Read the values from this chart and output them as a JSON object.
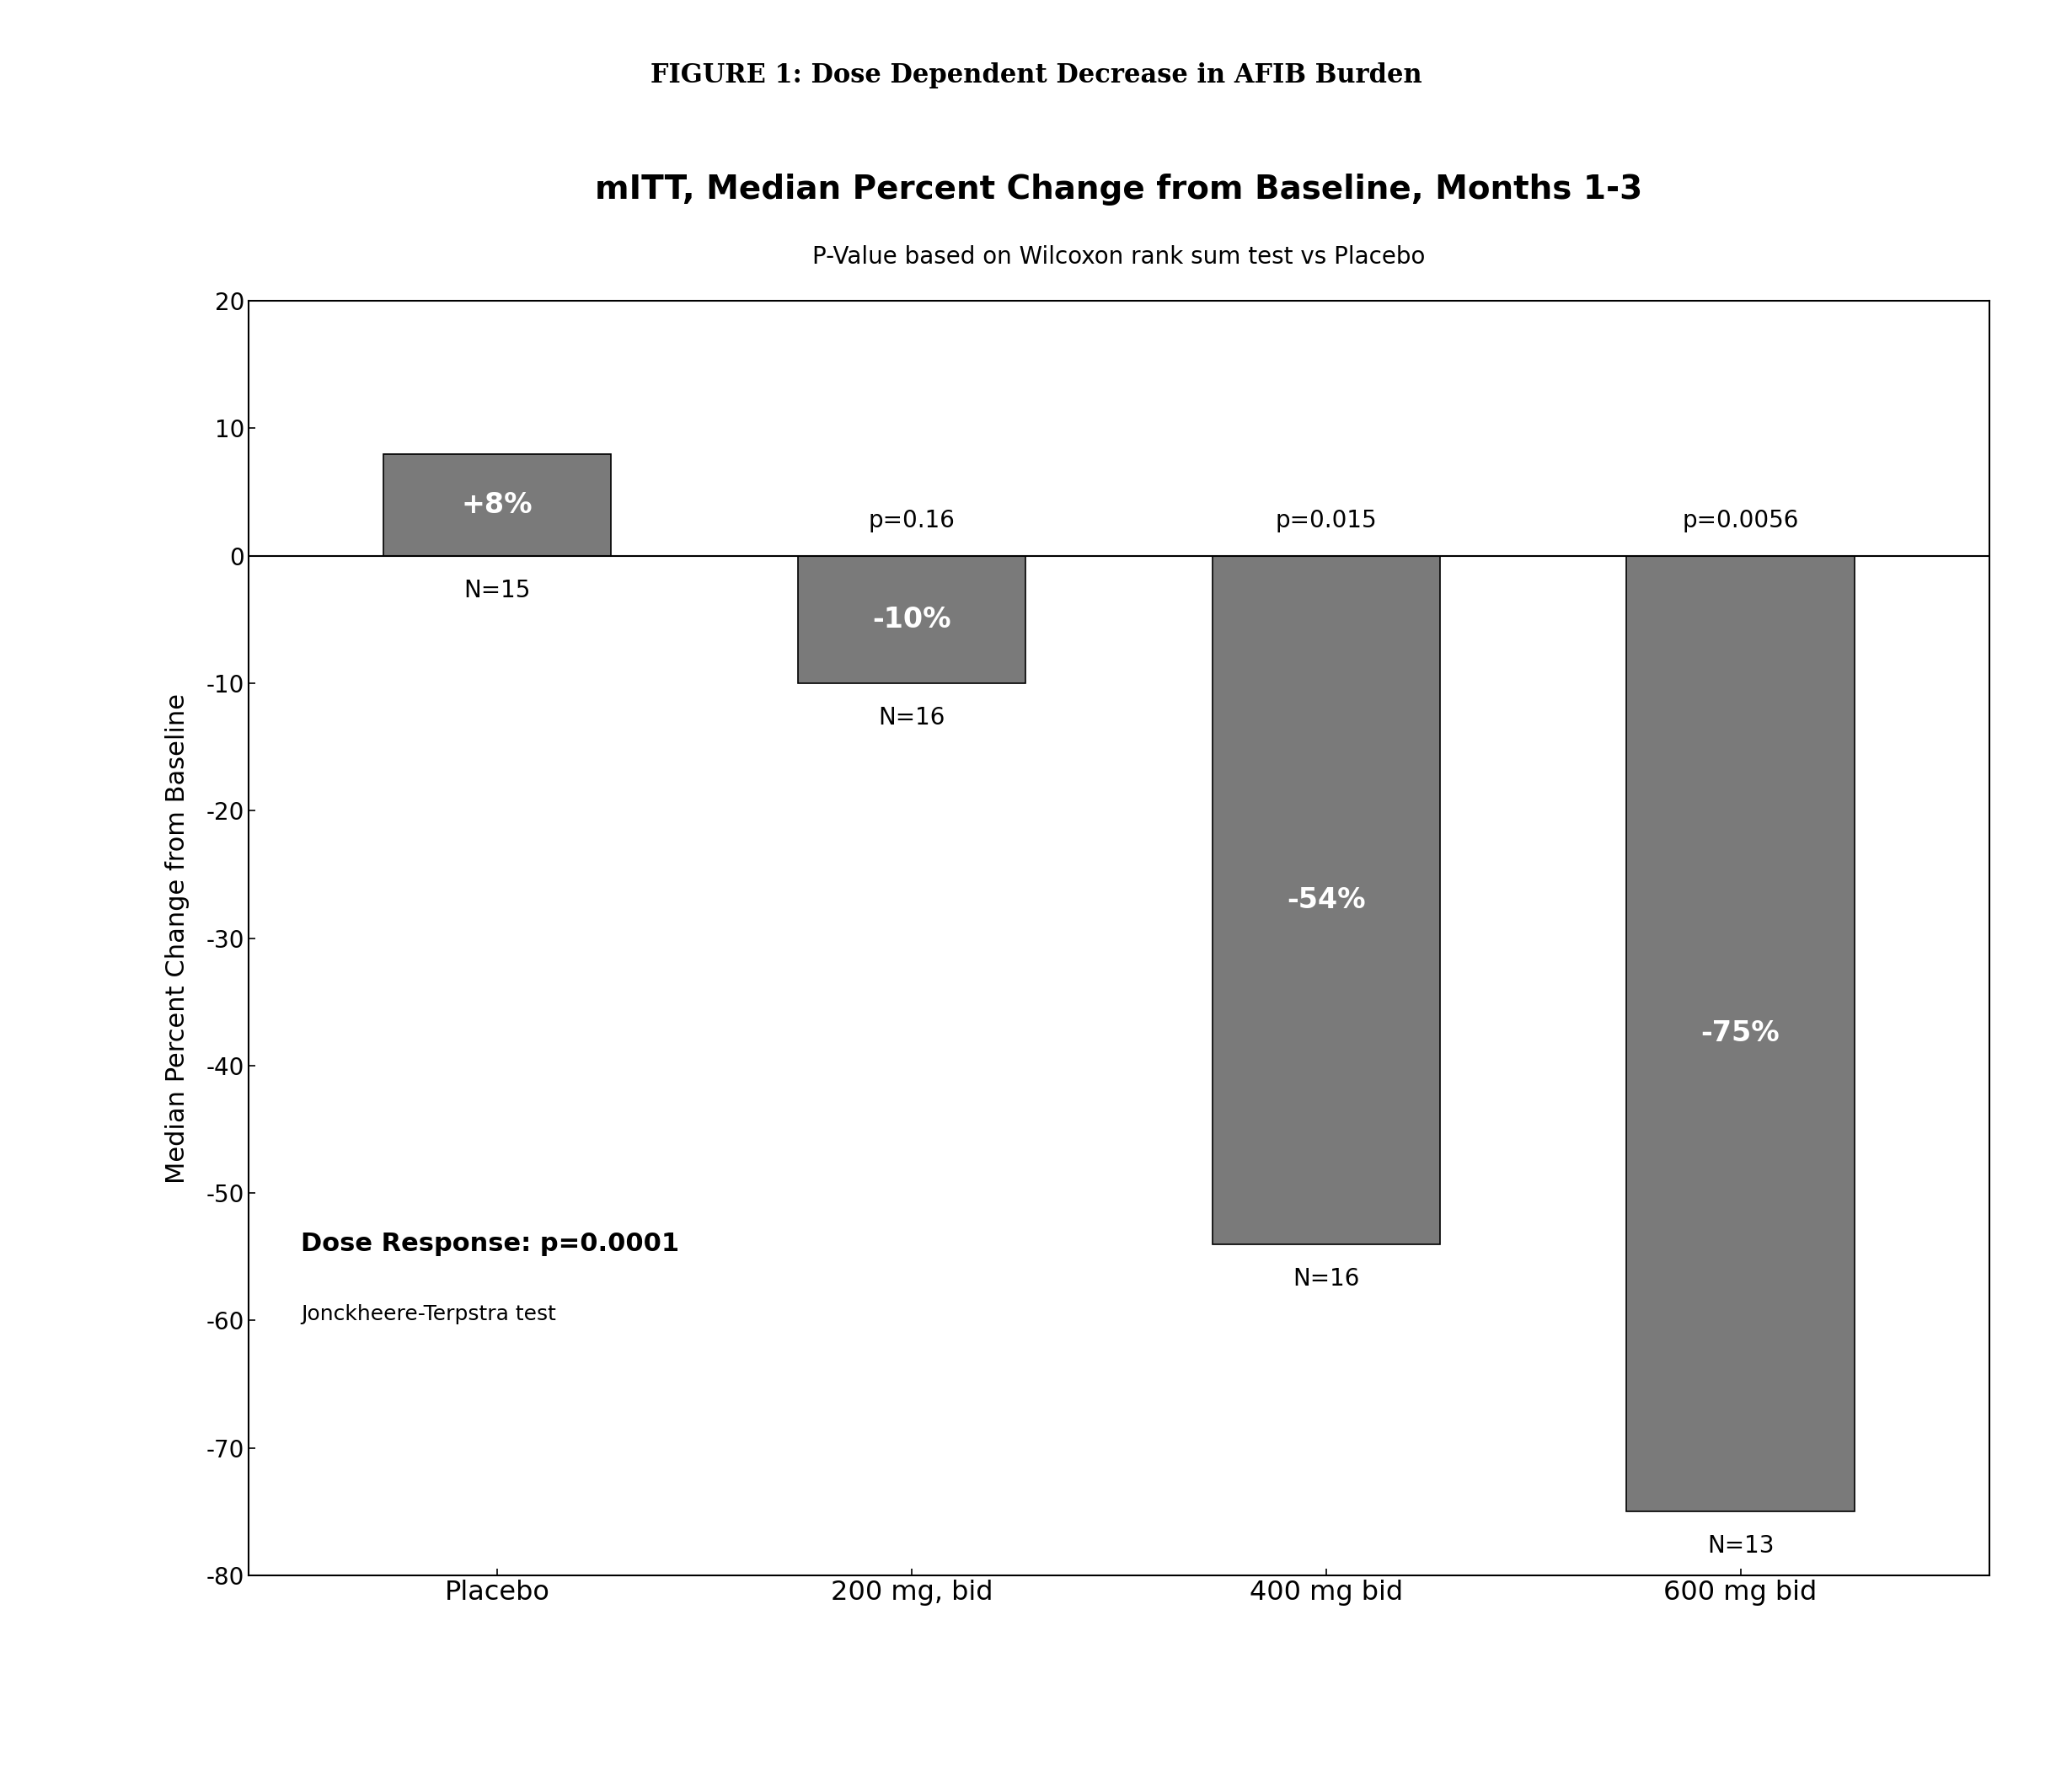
{
  "figure_title": "FIGURE 1: Dose Dependent Decrease in AFIB Burden",
  "chart_title": "mITT, Median Percent Change from Baseline, Months 1-3",
  "chart_subtitle": "P-Value based on Wilcoxon rank sum test vs Placebo",
  "ylabel": "Median Percent Change from Baseline",
  "categories": [
    "Placebo",
    "200 mg, bid",
    "400 mg bid",
    "600 mg bid"
  ],
  "values": [
    8,
    -10,
    -54,
    -75
  ],
  "bar_color": "#7a7a7a",
  "ylim": [
    -80,
    20
  ],
  "yticks": [
    -80,
    -70,
    -60,
    -50,
    -40,
    -30,
    -20,
    -10,
    0,
    10,
    20
  ],
  "p_values": [
    "",
    "p=0.16",
    "p=0.015",
    "p=0.0056"
  ],
  "n_values": [
    "N=15",
    "N=16",
    "N=16",
    "N=13"
  ],
  "bar_labels": [
    "+8%",
    "-10%",
    "-54%",
    "-75%"
  ],
  "dose_response_text": "Dose Response: p=0.0001",
  "jonck_text": "Jonckheere-Terpstra test",
  "bar_width": 0.55,
  "figure_title_fontsize": 22,
  "chart_title_fontsize": 28,
  "chart_subtitle_fontsize": 20,
  "ylabel_fontsize": 22,
  "tick_fontsize": 20,
  "xtick_fontsize": 23,
  "bar_label_fontsize": 24,
  "n_label_fontsize": 20,
  "p_label_fontsize": 20,
  "annot_fontsize": 22,
  "jonck_fontsize": 18
}
